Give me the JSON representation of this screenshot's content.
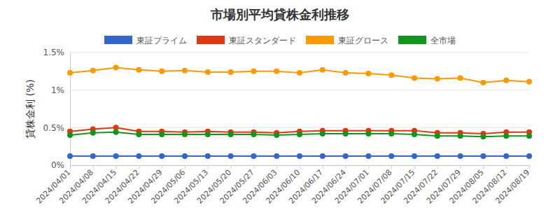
{
  "chart_data": {
    "type": "line",
    "title": "市場別平均貸株金利推移",
    "y_label": "貸株金利 (%)",
    "categories": [
      "2024/04/01",
      "2024/04/08",
      "2024/04/15",
      "2024/04/22",
      "2024/04/29",
      "2024/05/06",
      "2024/05/13",
      "2024/05/20",
      "2024/05/27",
      "2024/06/03",
      "2024/06/10",
      "2024/06/17",
      "2024/06/24",
      "2024/07/01",
      "2024/07/08",
      "2024/07/15",
      "2024/07/22",
      "2024/07/29",
      "2024/08/05",
      "2024/08/12",
      "2024/08/19"
    ],
    "series": [
      {
        "name": "東証プライム",
        "color": "#3366cc",
        "values": [
          0.12,
          0.12,
          0.12,
          0.12,
          0.12,
          0.12,
          0.12,
          0.12,
          0.12,
          0.12,
          0.12,
          0.12,
          0.12,
          0.12,
          0.12,
          0.12,
          0.12,
          0.12,
          0.12,
          0.12,
          0.12
        ]
      },
      {
        "name": "東証スタンダード",
        "color": "#dc3912",
        "values": [
          0.45,
          0.48,
          0.5,
          0.45,
          0.45,
          0.44,
          0.45,
          0.44,
          0.44,
          0.43,
          0.45,
          0.46,
          0.46,
          0.46,
          0.46,
          0.46,
          0.43,
          0.43,
          0.42,
          0.44,
          0.44
        ]
      },
      {
        "name": "東証グロース",
        "color": "#ff9900",
        "values": [
          1.23,
          1.26,
          1.3,
          1.27,
          1.25,
          1.26,
          1.24,
          1.24,
          1.25,
          1.25,
          1.23,
          1.27,
          1.23,
          1.22,
          1.2,
          1.16,
          1.15,
          1.16,
          1.1,
          1.13,
          1.11
        ]
      },
      {
        "name": "全市場",
        "color": "#109618",
        "values": [
          0.4,
          0.43,
          0.44,
          0.41,
          0.41,
          0.41,
          0.41,
          0.41,
          0.41,
          0.4,
          0.41,
          0.42,
          0.42,
          0.42,
          0.42,
          0.41,
          0.39,
          0.39,
          0.38,
          0.39,
          0.39
        ]
      }
    ],
    "ylim": [
      0,
      1.5
    ],
    "yticks": [
      {
        "value": 0,
        "label": "0%"
      },
      {
        "value": 0.5,
        "label": "0.5%"
      },
      {
        "value": 1,
        "label": "1%"
      },
      {
        "value": 1.5,
        "label": "1.5%"
      }
    ],
    "grid": true,
    "legend": "top",
    "marker": "circle"
  }
}
